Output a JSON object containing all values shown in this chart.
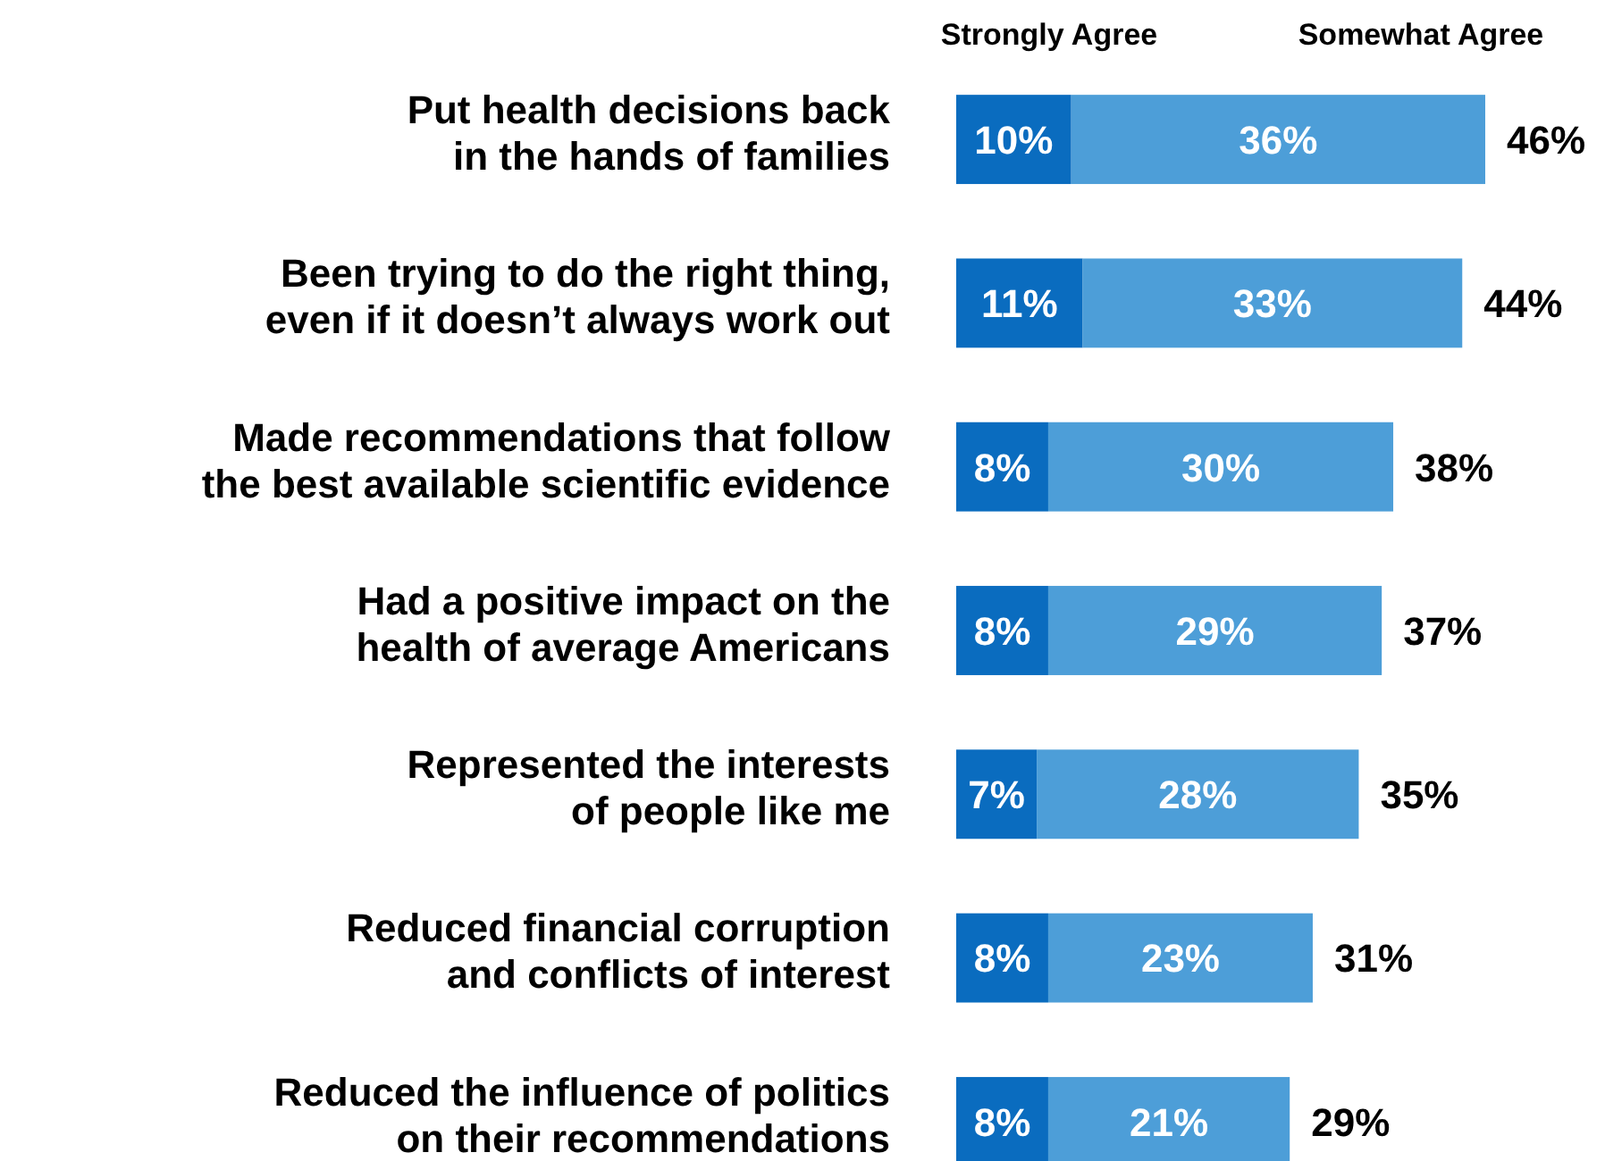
{
  "chart_data": {
    "type": "bar",
    "orientation": "horizontal",
    "stacked": true,
    "legend": "top",
    "categories": [
      "Put health decisions back\nin the hands of families",
      "Been trying to do the right thing,\neven if it doesn’t always work out",
      "Made recommendations that follow\nthe best available scientific evidence",
      "Had a positive impact on the\nhealth of average Americans",
      "Represented the interests\nof people like me",
      "Reduced financial corruption\nand conflicts of interest",
      "Reduced the influence of politics\non their recommendations"
    ],
    "series": [
      {
        "name": "Strongly Agree",
        "color": "#0a6cbf",
        "values": [
          10,
          11,
          8,
          8,
          7,
          8,
          8
        ],
        "value_labels": [
          "10%",
          "11%",
          "8%",
          "8%",
          "7%",
          "8%",
          "8%"
        ]
      },
      {
        "name": "Somewhat Agree",
        "color": "#4d9ed8",
        "values": [
          36,
          33,
          30,
          29,
          28,
          23,
          21
        ],
        "value_labels": [
          "36%",
          "33%",
          "30%",
          "29%",
          "28%",
          "23%",
          "21%"
        ]
      }
    ],
    "totals": [
      "46%",
      "44%",
      "38%",
      "37%",
      "35%",
      "31%",
      "29%"
    ]
  }
}
